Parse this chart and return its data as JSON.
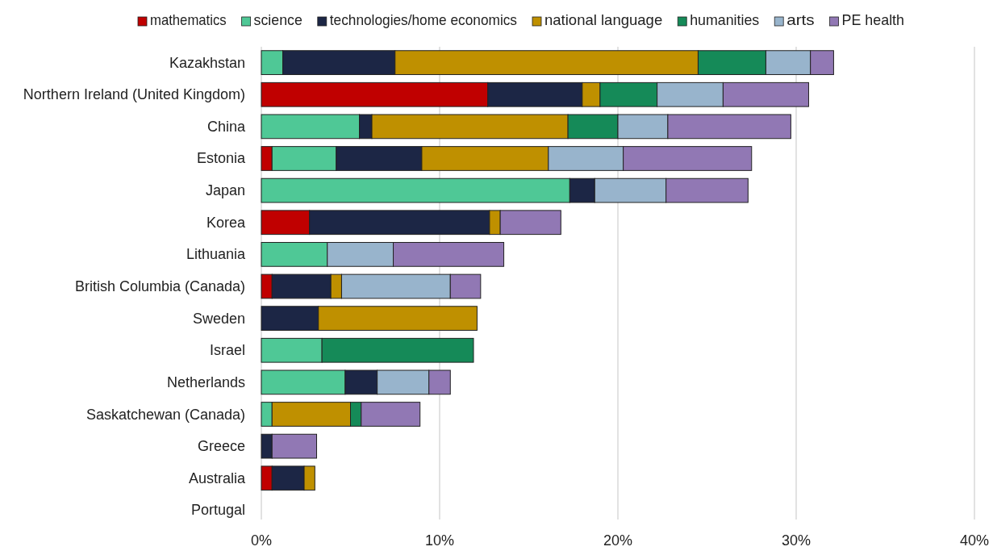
{
  "chart_data": {
    "type": "bar",
    "orientation": "horizontal",
    "stacked": true,
    "grid": "x",
    "legend": "top",
    "categories": [
      "Kazakhstan",
      "Northern Ireland (United Kingdom)",
      "China",
      "Estonia",
      "Japan",
      "Korea",
      "Lithuania",
      "British Columbia (Canada)",
      "Sweden",
      "Israel",
      "Netherlands",
      "Saskatchewan (Canada)",
      "Greece",
      "Australia",
      "Portugal"
    ],
    "xlim": [
      0,
      40
    ],
    "xticks": [
      {
        "value": 0,
        "label": "0%"
      },
      {
        "value": 10,
        "label": "10%"
      },
      {
        "value": 20,
        "label": "20%"
      },
      {
        "value": 30,
        "label": "30%"
      },
      {
        "value": 40,
        "label": "40%"
      }
    ],
    "series": [
      {
        "name": "mathematics",
        "color": "#c00000",
        "values": [
          null,
          12.7,
          null,
          0.6,
          null,
          2.7,
          null,
          0.6,
          null,
          null,
          null,
          null,
          null,
          0.6,
          null
        ]
      },
      {
        "name": "science",
        "color": "#4fc896",
        "values": [
          1.2,
          null,
          5.5,
          3.6,
          17.3,
          null,
          3.7,
          null,
          null,
          3.4,
          4.7,
          0.6,
          null,
          null,
          null
        ]
      },
      {
        "name": "technologies/home economics",
        "color": "#1c2645",
        "values": [
          6.3,
          5.3,
          0.7,
          4.8,
          1.4,
          10.1,
          null,
          3.3,
          3.2,
          null,
          1.8,
          null,
          0.6,
          1.8,
          null
        ]
      },
      {
        "name": "national language",
        "color": "#bf9000",
        "values": [
          17.0,
          1.0,
          11.0,
          7.1,
          null,
          0.6,
          null,
          0.6,
          8.9,
          null,
          null,
          4.4,
          null,
          0.6,
          null
        ]
      },
      {
        "name": "humanities",
        "color": "#158a58",
        "values": [
          3.8,
          3.2,
          2.8,
          null,
          null,
          null,
          null,
          null,
          null,
          8.5,
          null,
          0.6,
          null,
          null,
          null
        ]
      },
      {
        "name": "arts",
        "color": "#98b4cc",
        "values": [
          2.5,
          3.7,
          2.8,
          4.2,
          4.0,
          null,
          3.7,
          6.1,
          null,
          null,
          2.9,
          null,
          null,
          null,
          null
        ]
      },
      {
        "name": "PE health",
        "color": "#9178b4",
        "values": [
          1.3,
          4.8,
          6.9,
          7.2,
          4.6,
          3.4,
          6.2,
          1.7,
          null,
          null,
          1.2,
          3.3,
          2.5,
          null,
          null
        ]
      }
    ]
  }
}
